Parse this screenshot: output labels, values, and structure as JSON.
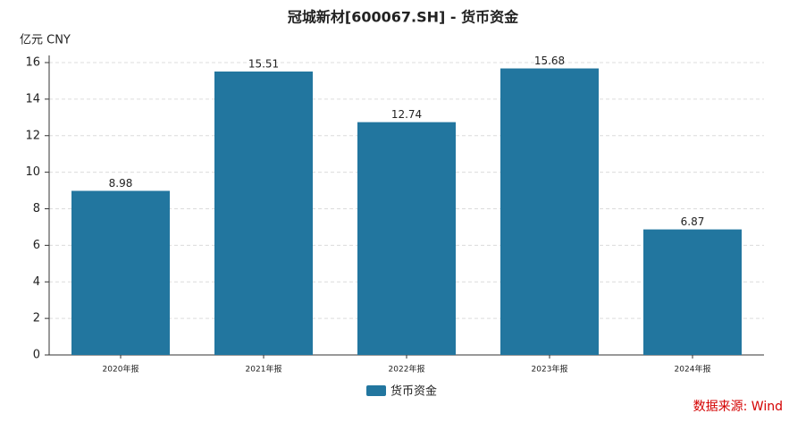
{
  "chart_data": {
    "type": "bar",
    "title": "冠城新材[600067.SH] - 货币资金",
    "y_label": "亿元  CNY",
    "categories": [
      "2020年报",
      "2021年报",
      "2022年报",
      "2023年报",
      "2024年报"
    ],
    "series": [
      {
        "name": "货币资金",
        "color": "#22769f",
        "values": [
          8.98,
          15.51,
          12.74,
          15.68,
          6.87
        ]
      }
    ],
    "ylim": [
      0,
      16
    ],
    "yticks": [
      0,
      2,
      4,
      6,
      8,
      10,
      12,
      14,
      16
    ],
    "grid": true,
    "legend": "bottom",
    "source": "数据来源: Wind"
  }
}
